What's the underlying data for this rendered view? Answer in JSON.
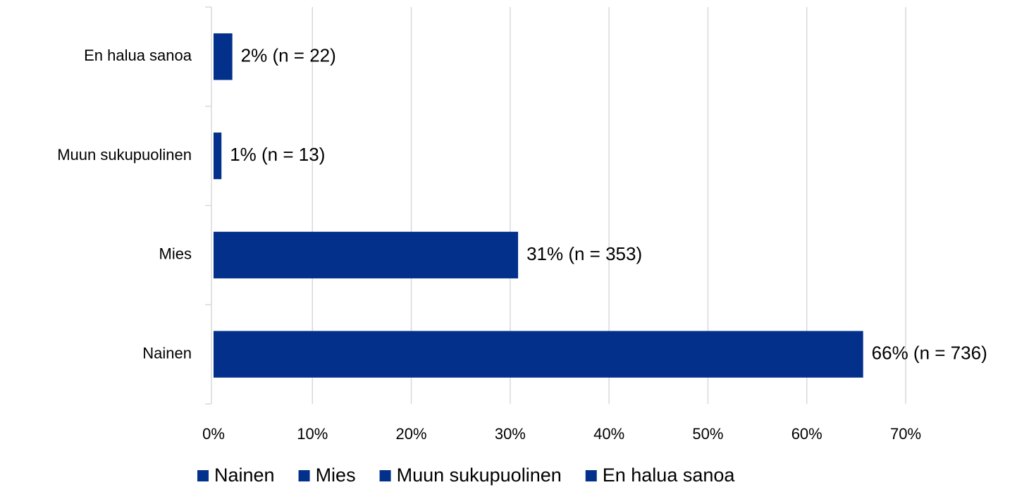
{
  "chart_data": {
    "type": "bar",
    "orientation": "horizontal",
    "categories": [
      "Nainen",
      "Mies",
      "Muun sukupuolinen",
      "En halua sanoa"
    ],
    "values": [
      65.7,
      30.8,
      0.8,
      1.9
    ],
    "value_labels": [
      "66% (n = 736)",
      "31% (n = 353)",
      "1% (n = 13)",
      "2% (n = 22)"
    ],
    "color": "#03308a",
    "xlim": [
      0,
      70
    ],
    "xticks": [
      {
        "value": 0,
        "label": "0%"
      },
      {
        "value": 10,
        "label": "10%"
      },
      {
        "value": 20,
        "label": "20%"
      },
      {
        "value": 30,
        "label": "30%"
      },
      {
        "value": 40,
        "label": "40%"
      },
      {
        "value": 50,
        "label": "50%"
      },
      {
        "value": 60,
        "label": "60%"
      },
      {
        "value": 70,
        "label": "70%"
      }
    ],
    "grid": true,
    "legend": "bottom"
  }
}
